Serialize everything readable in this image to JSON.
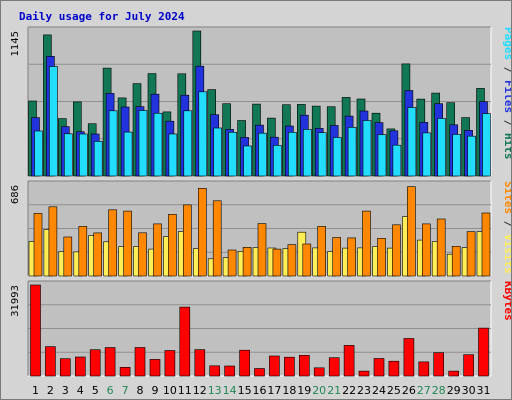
{
  "chart_data": {
    "type": "bar",
    "title": "Daily usage for July 2024",
    "x": [
      "1",
      "2",
      "3",
      "4",
      "5",
      "6",
      "7",
      "8",
      "9",
      "10",
      "11",
      "12",
      "13",
      "14",
      "15",
      "16",
      "17",
      "18",
      "19",
      "20",
      "21",
      "22",
      "23",
      "24",
      "25",
      "26",
      "27",
      "28",
      "29",
      "30",
      "31"
    ],
    "weekend_days": [
      "6",
      "7",
      "13",
      "14",
      "20",
      "21",
      "27",
      "28"
    ],
    "colors": {
      "hits": "#117755",
      "files": "#2233dd",
      "pages": "#22ddff",
      "visits": "#ffee55",
      "sites": "#ff8800",
      "kbytes": "#ff0000",
      "weekday_label": "#000000",
      "weekend_label": "#228855",
      "panel_bg": "#c0c0c0"
    },
    "panels": [
      {
        "ytick": "1145",
        "ylim": [
          0,
          1145
        ],
        "side_labels": [
          {
            "text": "Pages",
            "color": "#22ddff"
          },
          {
            "text": " / ",
            "color": "#333333"
          },
          {
            "text": "Files",
            "color": "#2233dd"
          },
          {
            "text": " / ",
            "color": "#333333"
          },
          {
            "text": "Hits",
            "color": "#117755"
          }
        ],
        "series": [
          {
            "name": "Hits",
            "color": "#117755",
            "values": [
              592,
              1114,
              453,
              585,
              413,
              852,
              617,
              730,
              809,
              506,
              807,
              1145,
              682,
              571,
              438,
              568,
              457,
              563,
              565,
              552,
              547,
              621,
              608,
              496,
              372,
              885,
              607,
              655,
              579,
              461,
              692
            ]
          },
          {
            "name": "Files",
            "color": "#2233dd",
            "values": [
              461,
              945,
              390,
              350,
              332,
              652,
              545,
              547,
              646,
              433,
              638,
              867,
              484,
              368,
              305,
              402,
              306,
              395,
              480,
              376,
              399,
              473,
              513,
              422,
              357,
              675,
              423,
              571,
              404,
              361,
              587
            ]
          },
          {
            "name": "Pages",
            "color": "#22ddff",
            "values": [
              355,
              865,
              333,
              332,
              273,
              515,
              347,
              517,
              495,
              332,
              515,
              665,
              379,
              345,
              237,
              338,
              242,
              345,
              368,
              342,
              304,
              384,
              438,
              327,
              243,
              541,
              340,
              454,
              328,
              314,
              493
            ]
          }
        ]
      },
      {
        "ytick": "686",
        "ylim": [
          0,
          686
        ],
        "side_labels": [
          {
            "text": "Sites",
            "color": "#ff8800"
          },
          {
            "text": " / ",
            "color": "#333333"
          },
          {
            "text": "Visits",
            "color": "#ffee55"
          }
        ],
        "series": [
          {
            "name": "Visits",
            "color": "#ffee55",
            "values": [
              260,
              350,
              184,
              182,
              305,
              258,
              222,
              222,
              203,
              296,
              335,
              206,
              130,
              138,
              186,
              214,
              211,
              206,
              330,
              212,
              184,
              210,
              212,
              222,
              210,
              447,
              271,
              259,
              164,
              213,
              334
            ]
          },
          {
            "name": "Sites",
            "color": "#ff8800",
            "values": [
              472,
              522,
              294,
              374,
              325,
              499,
              489,
              326,
              393,
              464,
              536,
              661,
              567,
              196,
              216,
              395,
              203,
              237,
              241,
              374,
              290,
              287,
              489,
              284,
              386,
              673,
              393,
              430,
              223,
              335,
              475
            ]
          }
        ]
      },
      {
        "ytick": "31993",
        "ylim": [
          0,
          31993
        ],
        "side_labels": [
          {
            "text": "KBytes",
            "color": "#ff0000"
          }
        ],
        "series": [
          {
            "name": "KBytes",
            "color": "#ff0000",
            "values": [
              31993,
              10328,
              6087,
              6690,
              9244,
              10014,
              3044,
              10012,
              5832,
              8973,
              24236,
              9284,
              3574,
              3521,
              9088,
              2637,
              7041,
              6609,
              7269,
              2874,
              6424,
              10745,
              1718,
              6152,
              5213,
              13178,
              4974,
              8198,
              1718,
              7497,
              16844
            ]
          }
        ]
      }
    ]
  }
}
